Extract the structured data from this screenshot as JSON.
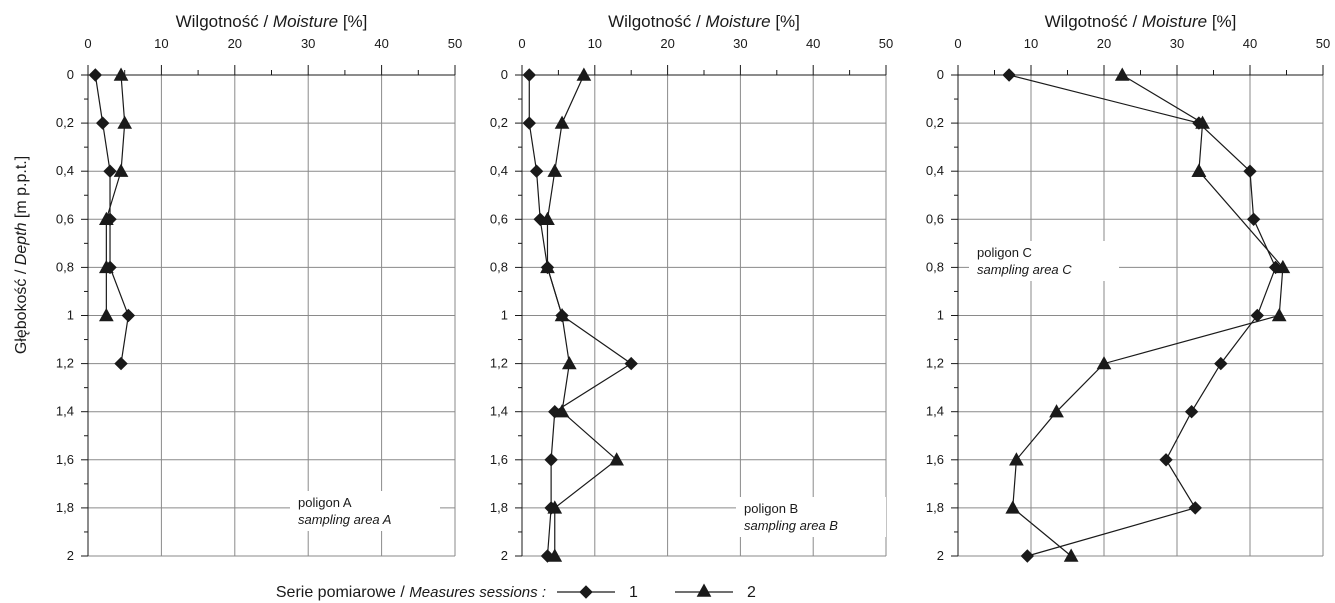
{
  "chart_data": [
    {
      "type": "line",
      "xlabel_pl": "Wilgotność / ",
      "xlabel_en": "Moisture",
      "xlabel_unit": "[%]",
      "xlim": [
        0,
        50
      ],
      "ylim": [
        0,
        2
      ],
      "y_inverted": true,
      "x_ticks": [
        "0",
        "10",
        "20",
        "30",
        "40",
        "50"
      ],
      "y_ticks": [
        "0",
        "0,2",
        "0,4",
        "0,6",
        "0,8",
        "1",
        "1,2",
        "1,4",
        "1,6",
        "1,8",
        "2"
      ],
      "grid": true,
      "annotation_line1": "poligon A",
      "annotation_line2": "sampling area A",
      "series": [
        {
          "name": "1",
          "marker": "diamond",
          "points": [
            [
              1,
              0
            ],
            [
              2,
              0.2
            ],
            [
              3,
              0.4
            ],
            [
              3,
              0.6
            ],
            [
              3,
              0.8
            ],
            [
              5.5,
              1.0
            ],
            [
              4.5,
              1.2
            ]
          ]
        },
        {
          "name": "2",
          "marker": "triangle",
          "points": [
            [
              4.5,
              0
            ],
            [
              5,
              0.2
            ],
            [
              4.5,
              0.4
            ],
            [
              2.5,
              0.6
            ],
            [
              2.5,
              0.8
            ],
            [
              2.5,
              1.0
            ]
          ]
        }
      ]
    },
    {
      "type": "line",
      "xlabel_pl": "Wilgotność / ",
      "xlabel_en": "Moisture",
      "xlabel_unit": "[%]",
      "xlim": [
        0,
        50
      ],
      "ylim": [
        0,
        2
      ],
      "y_inverted": true,
      "x_ticks": [
        "0",
        "10",
        "20",
        "30",
        "40",
        "50"
      ],
      "y_ticks": [
        "0",
        "0,2",
        "0,4",
        "0,6",
        "0,8",
        "1",
        "1,2",
        "1,4",
        "1,6",
        "1,8",
        "2"
      ],
      "grid": true,
      "annotation_line1": "poligon B",
      "annotation_line2": "sampling area B",
      "series": [
        {
          "name": "1",
          "marker": "diamond",
          "points": [
            [
              1,
              0
            ],
            [
              1,
              0.2
            ],
            [
              2,
              0.4
            ],
            [
              2.5,
              0.6
            ],
            [
              3.5,
              0.8
            ],
            [
              5.5,
              1.0
            ],
            [
              15,
              1.2
            ],
            [
              4.5,
              1.4
            ],
            [
              4,
              1.6
            ],
            [
              4,
              1.8
            ],
            [
              3.5,
              2.0
            ]
          ]
        },
        {
          "name": "2",
          "marker": "triangle",
          "points": [
            [
              8.5,
              0
            ],
            [
              5.5,
              0.2
            ],
            [
              4.5,
              0.4
            ],
            [
              3.5,
              0.6
            ],
            [
              3.5,
              0.8
            ],
            [
              5.5,
              1.0
            ],
            [
              6.5,
              1.2
            ],
            [
              5.5,
              1.4
            ],
            [
              13,
              1.6
            ],
            [
              4.5,
              1.8
            ],
            [
              4.5,
              2.0
            ]
          ]
        }
      ]
    },
    {
      "type": "line",
      "xlabel_pl": "Wilgotność / ",
      "xlabel_en": "Moisture",
      "xlabel_unit": "[%]",
      "xlim": [
        0,
        50
      ],
      "ylim": [
        0,
        2
      ],
      "y_inverted": true,
      "x_ticks": [
        "0",
        "10",
        "20",
        "30",
        "40",
        "50"
      ],
      "y_ticks": [
        "0",
        "0,2",
        "0,4",
        "0,6",
        "0,8",
        "1",
        "1,2",
        "1,4",
        "1,6",
        "1,8",
        "2"
      ],
      "grid": true,
      "annotation_line1": "poligon C",
      "annotation_line2": "sampling area C",
      "series": [
        {
          "name": "1",
          "marker": "diamond",
          "points": [
            [
              7,
              0
            ],
            [
              33,
              0.2
            ],
            [
              40,
              0.4
            ],
            [
              40.5,
              0.6
            ],
            [
              43.5,
              0.8
            ],
            [
              41,
              1.0
            ],
            [
              36,
              1.2
            ],
            [
              32,
              1.4
            ],
            [
              28.5,
              1.6
            ],
            [
              32.5,
              1.8
            ],
            [
              9.5,
              2.0
            ]
          ]
        },
        {
          "name": "2",
          "marker": "triangle",
          "points": [
            [
              22.5,
              0
            ],
            [
              33.5,
              0.2
            ],
            [
              33,
              0.4
            ],
            [
              33,
              0.4
            ],
            [
              44.5,
              0.8
            ],
            [
              44,
              1.0
            ],
            [
              20,
              1.2
            ],
            [
              13.5,
              1.4
            ],
            [
              8,
              1.6
            ],
            [
              7.5,
              1.8
            ],
            [
              15.5,
              2.0
            ]
          ]
        }
      ]
    }
  ],
  "y_axis_title_pl": "Głębokość / ",
  "y_axis_title_en": "Depth",
  "y_axis_title_unit": "[m p.p.t.]",
  "legend": {
    "prefix_pl": "Serie pomiarowe / ",
    "prefix_en": "Measures sessions :",
    "items": [
      {
        "label": "1",
        "marker": "diamond"
      },
      {
        "label": "2",
        "marker": "triangle"
      }
    ]
  }
}
